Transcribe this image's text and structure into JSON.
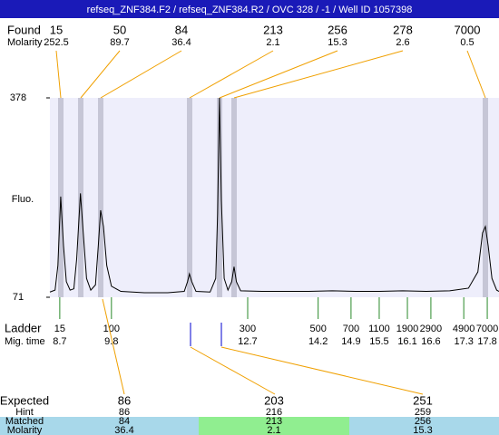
{
  "title": "refseq_ZNF384.F2 / refseq_ZNF384.R2 / OVC 328 / -1 / Well ID 1057398",
  "found": {
    "label": "Found",
    "molarity_label": "Molarity",
    "sizes": [
      15,
      50,
      84,
      213,
      256,
      278,
      7000
    ],
    "molarities": [
      252.5,
      89.7,
      36.4,
      2.1,
      15.3,
      2.6,
      0.5
    ]
  },
  "plot": {
    "y_label": "Fluo.",
    "ylim": [
      71,
      378
    ],
    "yticks": [
      71,
      378
    ],
    "xlim": [
      8.49,
      18.05
    ],
    "trace": {
      "x": [
        8.49,
        8.6,
        8.66,
        8.72,
        8.78,
        8.84,
        8.92,
        9.0,
        9.06,
        9.14,
        9.2,
        9.27,
        9.36,
        9.46,
        9.52,
        9.57,
        9.63,
        9.7,
        9.8,
        10.0,
        10.5,
        11.0,
        11.35,
        11.42,
        11.46,
        11.51,
        11.6,
        11.9,
        12.02,
        12.06,
        12.1,
        12.14,
        12.2,
        12.28,
        12.36,
        12.41,
        12.46,
        12.55,
        13.0,
        13.5,
        14.0,
        14.5,
        15.0,
        15.5,
        16.0,
        16.5,
        17.0,
        17.4,
        17.6,
        17.7,
        17.76,
        17.82,
        17.9,
        18.0,
        18.05
      ],
      "y": [
        79,
        82,
        120,
        226,
        150,
        95,
        82,
        84,
        130,
        231,
        170,
        100,
        82,
        90,
        150,
        205,
        180,
        120,
        88,
        80,
        78,
        78,
        80,
        95,
        107,
        95,
        80,
        79,
        100,
        200,
        378,
        220,
        100,
        82,
        95,
        118,
        95,
        81,
        80,
        80,
        80,
        81,
        80,
        80,
        81,
        80,
        81,
        85,
        110,
        170,
        180,
        150,
        100,
        82,
        80
      ]
    }
  },
  "ladder": {
    "label": "Ladder",
    "time_label": "Mig. time",
    "sizes": [
      15,
      100,
      300,
      500,
      700,
      1100,
      1900,
      2900,
      4900,
      7000
    ],
    "times": [
      8.7,
      9.8,
      12.7,
      14.2,
      14.9,
      15.5,
      16.1,
      16.6,
      17.3,
      17.8
    ]
  },
  "expected": {
    "row_labels": {
      "expected": "Expected",
      "hint": "Hint",
      "matched": "Matched",
      "molarity": "Molarity"
    },
    "expected": [
      86,
      203,
      251
    ],
    "hint": [
      86,
      216,
      259
    ],
    "matched": [
      84,
      213,
      256
    ],
    "molarity": [
      36.4,
      2.1,
      15.3
    ]
  }
}
